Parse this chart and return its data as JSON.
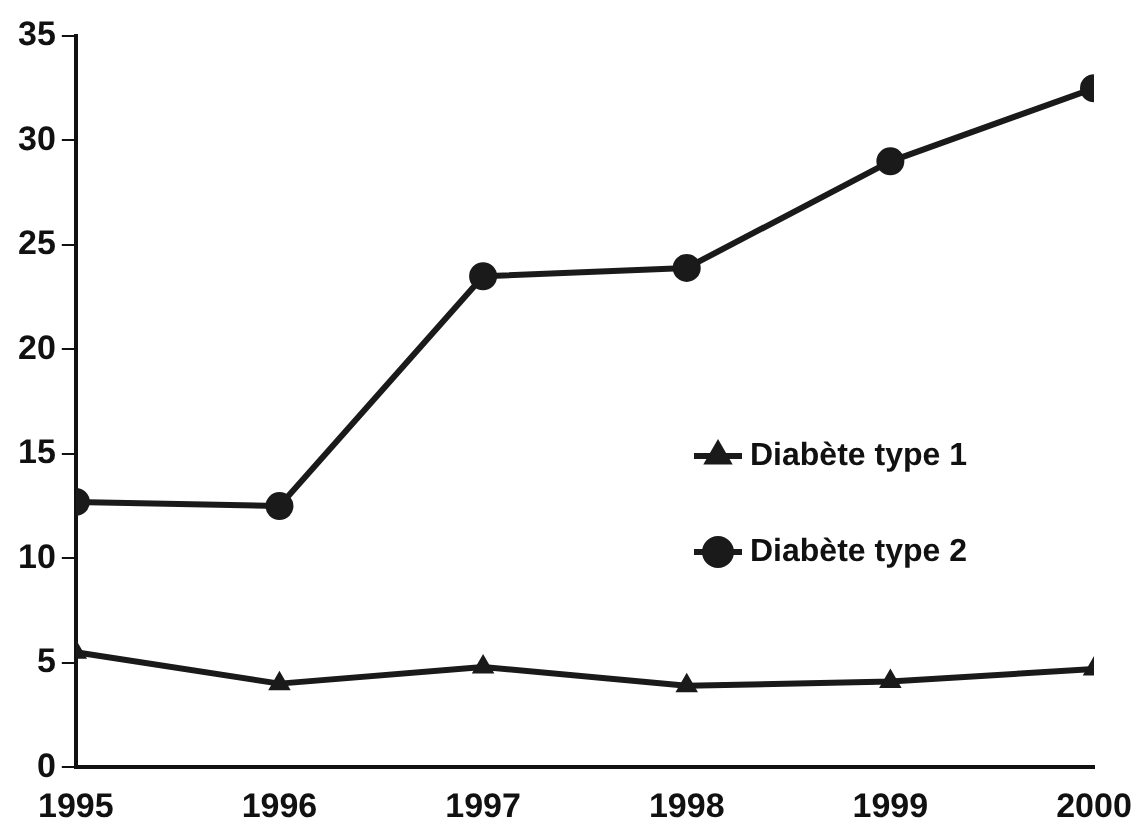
{
  "chart_data": {
    "type": "line",
    "x": [
      1995,
      1996,
      1997,
      1998,
      1999,
      2000
    ],
    "xlim": [
      1995,
      2000
    ],
    "xticks": [
      1995,
      1996,
      1997,
      1998,
      1999,
      2000
    ],
    "ylim": [
      0,
      35
    ],
    "yticks": [
      0,
      5,
      10,
      15,
      20,
      25,
      30,
      35
    ],
    "grid": false,
    "legend": "right",
    "line_style": "solid",
    "series": [
      {
        "name": "Diabète type 1",
        "color": "#1a1a1a",
        "marker": "triangle",
        "values": [
          5.5,
          4.0,
          4.8,
          3.9,
          4.1,
          4.7
        ]
      },
      {
        "name": "Diabète type 2",
        "color": "#1a1a1a",
        "marker": "circle",
        "values": [
          12.7,
          12.5,
          23.5,
          23.9,
          29.0,
          32.5
        ]
      }
    ]
  }
}
